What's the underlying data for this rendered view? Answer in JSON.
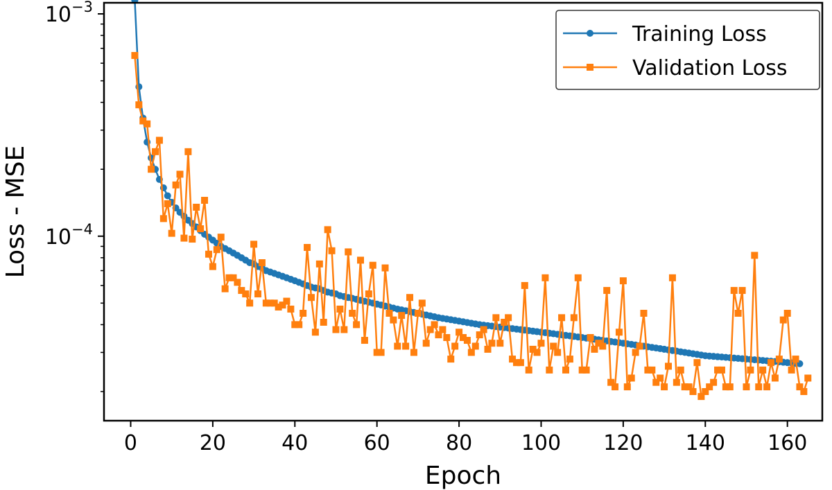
{
  "chart_data": {
    "type": "line",
    "xlabel": "Epoch",
    "ylabel": "Loss - MSE",
    "yscale": "log",
    "xlim": [
      -6.5,
      168.5
    ],
    "ylim_log10": [
      -4.83,
      -2.95
    ],
    "xticks": [
      0,
      20,
      40,
      60,
      80,
      100,
      120,
      140,
      160
    ],
    "yticks": [
      {
        "value": 0.001,
        "base": "10",
        "exponent": "−3"
      },
      {
        "value": 0.0001,
        "base": "10",
        "exponent": "−4"
      }
    ],
    "legend": {
      "location": "upper right",
      "entries": [
        "Training Loss",
        "Validation Loss"
      ]
    },
    "series": [
      {
        "name": "Training Loss",
        "color": "#1f77b4",
        "marker": "circle",
        "x_start": 1,
        "values": [
          0.00115,
          0.00047,
          0.00034,
          0.000265,
          0.000225,
          0.0002,
          0.00018,
          0.000165,
          0.000152,
          0.000142,
          0.000134,
          0.000128,
          0.000123,
          0.000118,
          0.000114,
          0.00011,
          0.000106,
          0.000102,
          9.9e-05,
          9.6e-05,
          9.3e-05,
          9e-05,
          8.8e-05,
          8.6e-05,
          8.4e-05,
          8.2e-05,
          8e-05,
          7.8e-05,
          7.6e-05,
          7.5e-05,
          7.3e-05,
          7.2e-05,
          7e-05,
          6.9e-05,
          6.8e-05,
          6.7e-05,
          6.6e-05,
          6.5e-05,
          6.4e-05,
          6.3e-05,
          6.2e-05,
          6.1e-05,
          6e-05,
          5.9e-05,
          5.85e-05,
          5.8e-05,
          5.7e-05,
          5.6e-05,
          5.55e-05,
          5.5e-05,
          5.4e-05,
          5.35e-05,
          5.3e-05,
          5.25e-05,
          5.2e-05,
          5.15e-05,
          5.1e-05,
          5.05e-05,
          5e-05,
          4.95e-05,
          4.9e-05,
          4.85e-05,
          4.8e-05,
          4.75e-05,
          4.7e-05,
          4.66e-05,
          4.62e-05,
          4.58e-05,
          4.54e-05,
          4.5e-05,
          4.46e-05,
          4.42e-05,
          4.38e-05,
          4.34e-05,
          4.3e-05,
          4.27e-05,
          4.24e-05,
          4.21e-05,
          4.18e-05,
          4.15e-05,
          4.12e-05,
          4.09e-05,
          4.06e-05,
          4.03e-05,
          4e-05,
          3.98e-05,
          3.96e-05,
          3.94e-05,
          3.92e-05,
          3.9e-05,
          3.88e-05,
          3.86e-05,
          3.84e-05,
          3.82e-05,
          3.8e-05,
          3.78e-05,
          3.76e-05,
          3.74e-05,
          3.72e-05,
          3.7e-05,
          3.68e-05,
          3.66e-05,
          3.64e-05,
          3.62e-05,
          3.6e-05,
          3.58e-05,
          3.56e-05,
          3.54e-05,
          3.52e-05,
          3.5e-05,
          3.48e-05,
          3.46e-05,
          3.44e-05,
          3.42e-05,
          3.4e-05,
          3.38e-05,
          3.36e-05,
          3.34e-05,
          3.32e-05,
          3.3e-05,
          3.28e-05,
          3.26e-05,
          3.24e-05,
          3.22e-05,
          3.2e-05,
          3.18e-05,
          3.16e-05,
          3.14e-05,
          3.12e-05,
          3.1e-05,
          3.08e-05,
          3.06e-05,
          3.04e-05,
          3.02e-05,
          3e-05,
          2.98e-05,
          2.96e-05,
          2.94e-05,
          2.92e-05,
          2.9e-05,
          2.89e-05,
          2.88e-05,
          2.87e-05,
          2.86e-05,
          2.85e-05,
          2.84e-05,
          2.83e-05,
          2.82e-05,
          2.81e-05,
          2.8e-05,
          2.79e-05,
          2.78e-05,
          2.77e-05,
          2.76e-05,
          2.75e-05,
          2.74e-05,
          2.73e-05,
          2.72e-05,
          2.71e-05,
          2.7e-05,
          2.69e-05,
          2.68e-05,
          2.67e-05
        ]
      },
      {
        "name": "Validation Loss",
        "color": "#ff7f0e",
        "marker": "square",
        "x_start": 1,
        "values": [
          0.00065,
          0.00039,
          0.00033,
          0.00032,
          0.0002,
          0.00024,
          0.00027,
          0.00012,
          0.00014,
          0.000103,
          0.00017,
          0.00019,
          9.8e-05,
          0.00024,
          9.7e-05,
          0.000135,
          0.000108,
          0.000145,
          8.3e-05,
          7.3e-05,
          8.7e-05,
          9.9e-05,
          5.8e-05,
          6.5e-05,
          6.5e-05,
          6.2e-05,
          5.7e-05,
          5.5e-05,
          5e-05,
          9.2e-05,
          5.5e-05,
          7.6e-05,
          5e-05,
          5e-05,
          5e-05,
          4.8e-05,
          4.9e-05,
          5.1e-05,
          4.7e-05,
          4e-05,
          4e-05,
          4.5e-05,
          8.9e-05,
          5.3e-05,
          3.7e-05,
          7.5e-05,
          4.1e-05,
          0.000107,
          8.6e-05,
          3.8e-05,
          4.7e-05,
          3.8e-05,
          8.5e-05,
          4.5e-05,
          4e-05,
          7.8e-05,
          3.4e-05,
          5.5e-05,
          7.4e-05,
          3e-05,
          3e-05,
          7.2e-05,
          4.5e-05,
          4.2e-05,
          3.2e-05,
          4.4e-05,
          3.2e-05,
          5.3e-05,
          3e-05,
          4.5e-05,
          5e-05,
          3.3e-05,
          3.8e-05,
          4e-05,
          3.6e-05,
          3.8e-05,
          3.5e-05,
          2.8e-05,
          3.2e-05,
          3.7e-05,
          3.5e-05,
          3.4e-05,
          3e-05,
          3.2e-05,
          3.6e-05,
          3.8e-05,
          3.1e-05,
          3.3e-05,
          4.3e-05,
          3.3e-05,
          4.1e-05,
          4.3e-05,
          2.8e-05,
          2.7e-05,
          2.7e-05,
          6e-05,
          2.5e-05,
          3.1e-05,
          3e-05,
          3.3e-05,
          6.5e-05,
          2.5e-05,
          3.2e-05,
          3e-05,
          4.3e-05,
          2.5e-05,
          2.8e-05,
          4.3e-05,
          6.5e-05,
          2.5e-05,
          2.5e-05,
          3.5e-05,
          3.1e-05,
          3.3e-05,
          3.2e-05,
          5.7e-05,
          2.2e-05,
          2.1e-05,
          3.7e-05,
          6.3e-05,
          2.1e-05,
          2.3e-05,
          3e-05,
          3.2e-05,
          4.5e-05,
          2.5e-05,
          2.5e-05,
          2.2e-05,
          2.3e-05,
          2.1e-05,
          2.6e-05,
          6.5e-05,
          2.2e-05,
          2.5e-05,
          2.1e-05,
          2.1e-05,
          2e-05,
          2.7e-05,
          1.9e-05,
          2e-05,
          2.1e-05,
          2.2e-05,
          2.5e-05,
          2.5e-05,
          2.1e-05,
          2.1e-05,
          5.7e-05,
          4.5e-05,
          5.7e-05,
          2.1e-05,
          2.5e-05,
          8.2e-05,
          2.1e-05,
          2.5e-05,
          2.1e-05,
          2.7e-05,
          2.3e-05,
          2.8e-05,
          4.2e-05,
          4.5e-05,
          2.5e-05,
          2.8e-05,
          2.1e-05,
          2e-05,
          2.3e-05
        ]
      }
    ]
  }
}
